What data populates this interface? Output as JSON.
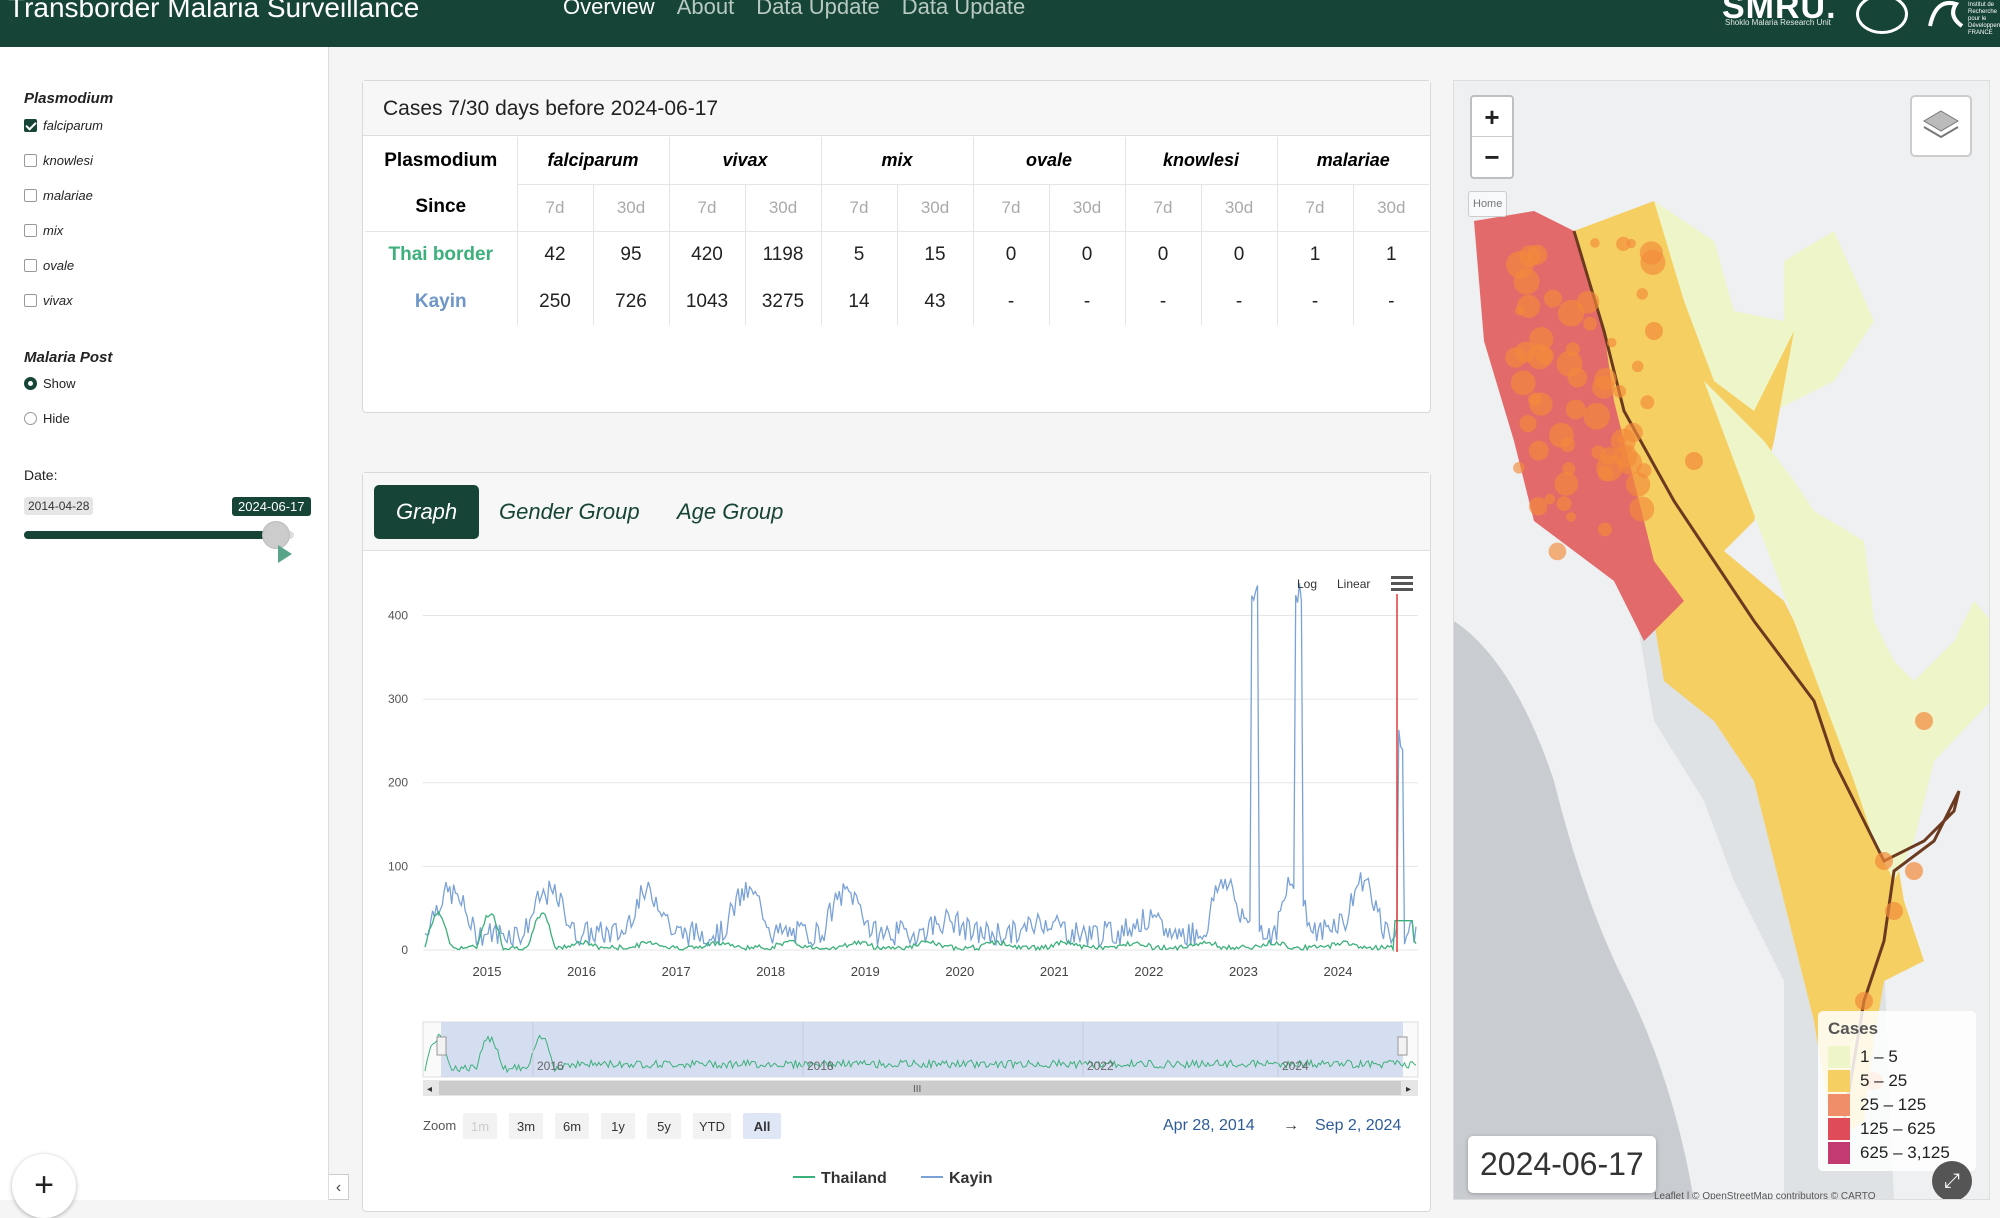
{
  "header": {
    "title": "Transborder Malaria Surveillance",
    "nav": [
      "Overview",
      "About",
      "Data Update",
      "Data Update"
    ],
    "logo_smru": "SMRU.",
    "logo_smru_sub": "Shoklo Malaria Research Unit",
    "logo_ird": "Institut de Recherche pour le Développement FRANCE"
  },
  "sidebar": {
    "plasmodium_heading": "Plasmodium",
    "plasmodium_options": [
      {
        "label": "falciparum",
        "checked": true
      },
      {
        "label": "knowlesi",
        "checked": false
      },
      {
        "label": "malariae",
        "checked": false
      },
      {
        "label": "mix",
        "checked": false
      },
      {
        "label": "ovale",
        "checked": false
      },
      {
        "label": "vivax",
        "checked": false
      }
    ],
    "post_heading": "Malaria Post",
    "post_options": [
      {
        "label": "Show",
        "checked": true
      },
      {
        "label": "Hide",
        "checked": false
      }
    ],
    "date_label": "Date:",
    "date_min": "2014-04-28",
    "date_max": "2024-06-17",
    "slider_position": 0.93,
    "fab": "+",
    "collapse": "‹"
  },
  "cases": {
    "title": "Cases 7/30 days before 2024-06-17",
    "plasmodium_label": "Plasmodium",
    "since_label": "Since",
    "species": [
      "falciparum",
      "vivax",
      "mix",
      "ovale",
      "knowlesi",
      "malariae"
    ],
    "periods": [
      "7d",
      "30d"
    ],
    "rows": [
      {
        "label": "Thai border",
        "color": "#3cb07a",
        "values": [
          "42",
          "95",
          "420",
          "1198",
          "5",
          "15",
          "0",
          "0",
          "0",
          "0",
          "1",
          "1"
        ]
      },
      {
        "label": "Kayin",
        "color": "#6f96c8",
        "values": [
          "250",
          "726",
          "1043",
          "3275",
          "14",
          "43",
          "-",
          "-",
          "-",
          "-",
          "-",
          "-"
        ]
      }
    ]
  },
  "tabs": [
    {
      "label": "Graph",
      "active": true
    },
    {
      "label": "Gender Group",
      "active": false
    },
    {
      "label": "Age Group",
      "active": false
    }
  ],
  "chart_data": {
    "type": "line",
    "scale_buttons": [
      "Log",
      "Linear"
    ],
    "y_ticks": [
      0,
      100,
      200,
      300,
      400
    ],
    "ylim": [
      0,
      440
    ],
    "x_ticks": [
      "2015",
      "2016",
      "2017",
      "2018",
      "2019",
      "2020",
      "2021",
      "2022",
      "2023",
      "2024"
    ],
    "navigator_ticks": [
      "2016",
      "2018",
      "2022",
      "2024"
    ],
    "zoom_label": "Zoom",
    "zoom_buttons": [
      {
        "label": "1m",
        "state": "disabled"
      },
      {
        "label": "3m",
        "state": "normal"
      },
      {
        "label": "6m",
        "state": "normal"
      },
      {
        "label": "1y",
        "state": "normal"
      },
      {
        "label": "5y",
        "state": "normal"
      },
      {
        "label": "YTD",
        "state": "normal"
      },
      {
        "label": "All",
        "state": "selected"
      }
    ],
    "range_from": "Apr 28, 2014",
    "range_arrow": "→",
    "range_to": "Sep 2, 2024",
    "series": [
      {
        "name": "Thailand",
        "color": "#3cb07a"
      },
      {
        "name": "Kayin",
        "color": "#7aa2d6"
      }
    ]
  },
  "map": {
    "zoom_in": "+",
    "zoom_out": "−",
    "home": "Home",
    "legend_title": "Cases",
    "legend": [
      {
        "label": "1 – 5",
        "color": "#eef5c8"
      },
      {
        "label": "5 – 25",
        "color": "#f6cf62"
      },
      {
        "label": "25 – 125",
        "color": "#ef8e68"
      },
      {
        "label": "125 – 625",
        "color": "#e04b5a"
      },
      {
        "label": "625 – 3,125",
        "color": "#c23a6f"
      }
    ],
    "date": "2024-06-17",
    "attribution": "Leaflet | © OpenStreetMap contributors © CARTO"
  }
}
